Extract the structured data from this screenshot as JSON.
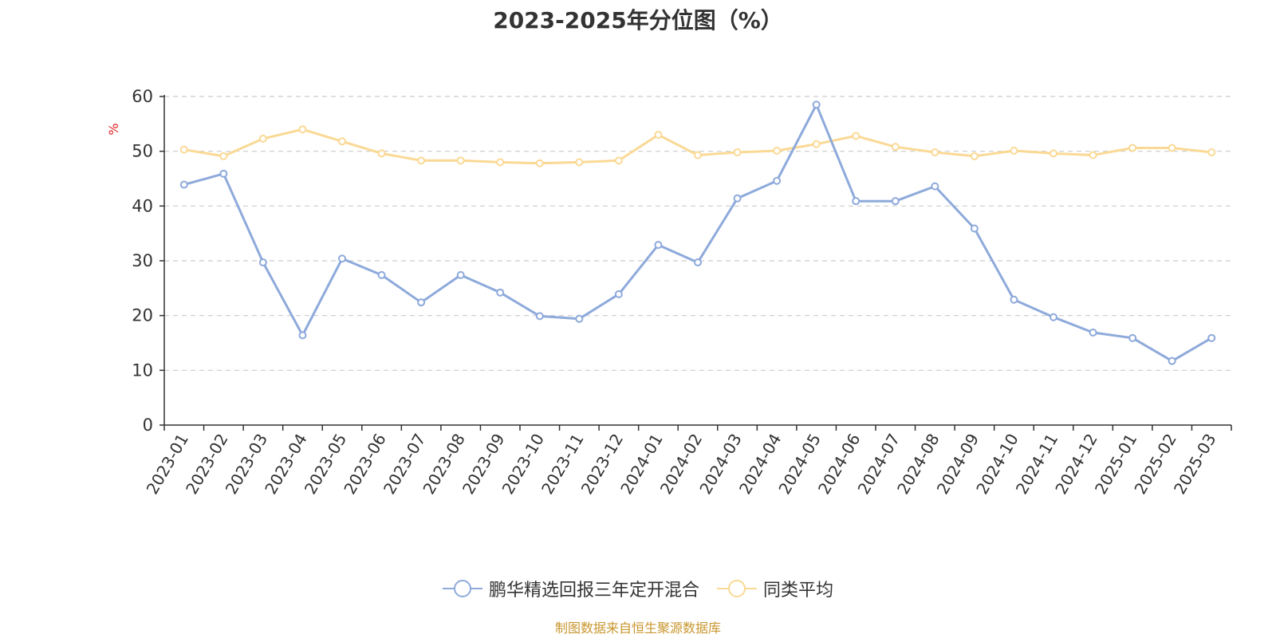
{
  "chart_data": {
    "type": "line",
    "title": "2023-2025年分位图（%）",
    "ylabel": "%",
    "xlabel": "",
    "ylim": [
      0,
      60
    ],
    "yticks": [
      0,
      10,
      20,
      30,
      40,
      50,
      60
    ],
    "grid": true,
    "legend_position": "bottom-center",
    "categories": [
      "2023-01",
      "2023-02",
      "2023-03",
      "2023-04",
      "2023-05",
      "2023-06",
      "2023-07",
      "2023-08",
      "2023-09",
      "2023-10",
      "2023-11",
      "2023-12",
      "2024-01",
      "2024-02",
      "2024-03",
      "2024-04",
      "2024-05",
      "2024-06",
      "2024-07",
      "2024-08",
      "2024-09",
      "2024-10",
      "2024-11",
      "2024-12",
      "2025-01",
      "2025-02",
      "2025-03"
    ],
    "series": [
      {
        "name": "鹏华精选回报三年定开混合",
        "color": "#8eaadb",
        "values": [
          43.9,
          45.9,
          29.7,
          16.4,
          30.4,
          27.4,
          22.4,
          27.4,
          24.2,
          19.9,
          19.4,
          23.9,
          32.9,
          29.7,
          41.4,
          44.6,
          58.5,
          40.9,
          40.9,
          43.6,
          35.9,
          22.9,
          19.7,
          16.9,
          15.9,
          11.7,
          15.9
        ]
      },
      {
        "name": "同类平均",
        "color": "#fad995",
        "values": [
          50.3,
          49.1,
          52.3,
          54.0,
          51.8,
          49.6,
          48.3,
          48.3,
          48.0,
          47.8,
          48.0,
          48.3,
          53.0,
          49.3,
          49.8,
          50.1,
          51.3,
          52.8,
          50.8,
          49.8,
          49.1,
          50.1,
          49.6,
          49.3,
          50.6,
          50.6,
          49.8
        ]
      }
    ]
  },
  "source_note": "制图数据来自恒生聚源数据库"
}
